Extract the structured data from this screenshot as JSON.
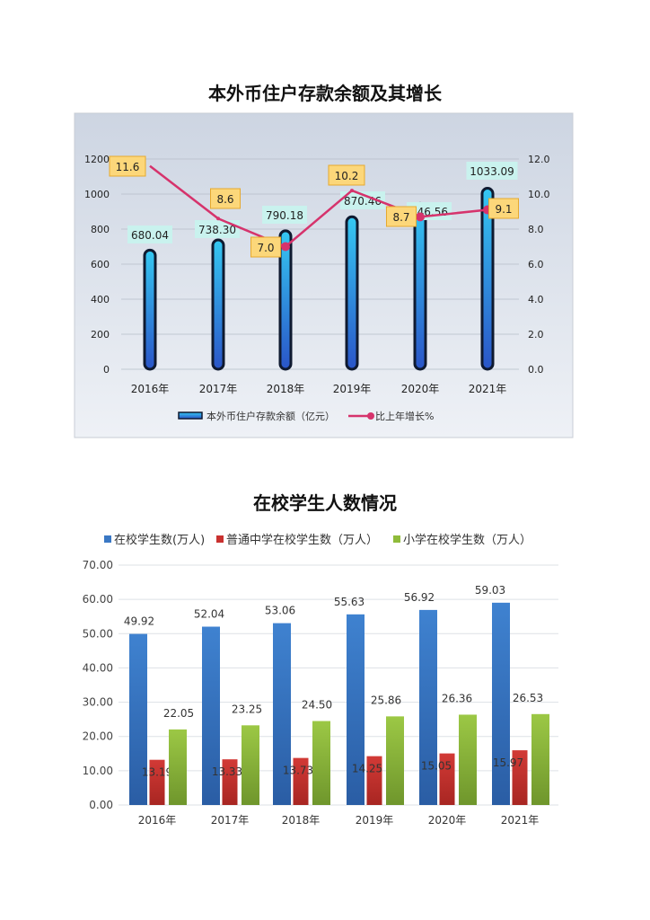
{
  "chart_data": [
    {
      "type": "bar+line",
      "title": "本外币住户存款余额及其增长",
      "categories": [
        "2016年",
        "2017年",
        "2018年",
        "2019年",
        "2020年",
        "2021年"
      ],
      "series": [
        {
          "name": "本外币住户存款余额（亿元）",
          "type": "bar",
          "axis": "left",
          "values": [
            680.04,
            738.3,
            790.18,
            870.46,
            946.56,
            1033.09
          ],
          "labels": [
            "680.04",
            "738.30",
            "790.18",
            "870.46",
            "946.56",
            "1033.09"
          ],
          "color": "#29a8e8"
        },
        {
          "name": "比上年增长%",
          "type": "line",
          "axis": "right",
          "values": [
            11.6,
            8.6,
            7.0,
            10.2,
            8.7,
            9.1
          ],
          "labels": [
            "11.6",
            "8.6",
            "7.0",
            "10.2",
            "8.7",
            "9.1"
          ],
          "color": "#d6336c"
        }
      ],
      "ylim": [
        0,
        1200
      ],
      "yticks": [
        "0",
        "200",
        "400",
        "600",
        "800",
        "1000",
        "1200"
      ],
      "y2lim": [
        0,
        12
      ],
      "y2ticks": [
        "0.0",
        "2.0",
        "4.0",
        "6.0",
        "8.0",
        "10.0",
        "12.0"
      ],
      "grid": true,
      "legend": "bottom",
      "background": "#dde3ec"
    },
    {
      "type": "bar",
      "title": "在校学生人数情况",
      "categories": [
        "2016年",
        "2017年",
        "2018年",
        "2019年",
        "2020年",
        "2021年"
      ],
      "series": [
        {
          "name": "在校学生数(万人)",
          "values": [
            49.92,
            52.04,
            53.06,
            55.63,
            56.92,
            59.03
          ],
          "labels": [
            "49.92",
            "52.04",
            "53.06",
            "55.63",
            "56.92",
            "59.03"
          ],
          "color": "#3a78c4"
        },
        {
          "name": "普通中学在校学生数（万人）",
          "values": [
            13.19,
            13.33,
            13.73,
            14.25,
            15.05,
            15.97
          ],
          "labels": [
            "13.19",
            "13.33",
            "13.73",
            "14.25",
            "15.05",
            "15.97"
          ],
          "color": "#c9312f"
        },
        {
          "name": "小学在校学生数（万人）",
          "values": [
            22.05,
            23.25,
            24.5,
            25.86,
            26.36,
            26.53
          ],
          "labels": [
            "22.05",
            "23.25",
            "24.50",
            "25.86",
            "26.36",
            "26.53"
          ],
          "color": "#8fbb3a"
        }
      ],
      "ylim": [
        0,
        70
      ],
      "yticks": [
        "0.00",
        "10.00",
        "20.00",
        "30.00",
        "40.00",
        "50.00",
        "60.00",
        "70.00"
      ],
      "grid": true,
      "legend": "top"
    }
  ]
}
